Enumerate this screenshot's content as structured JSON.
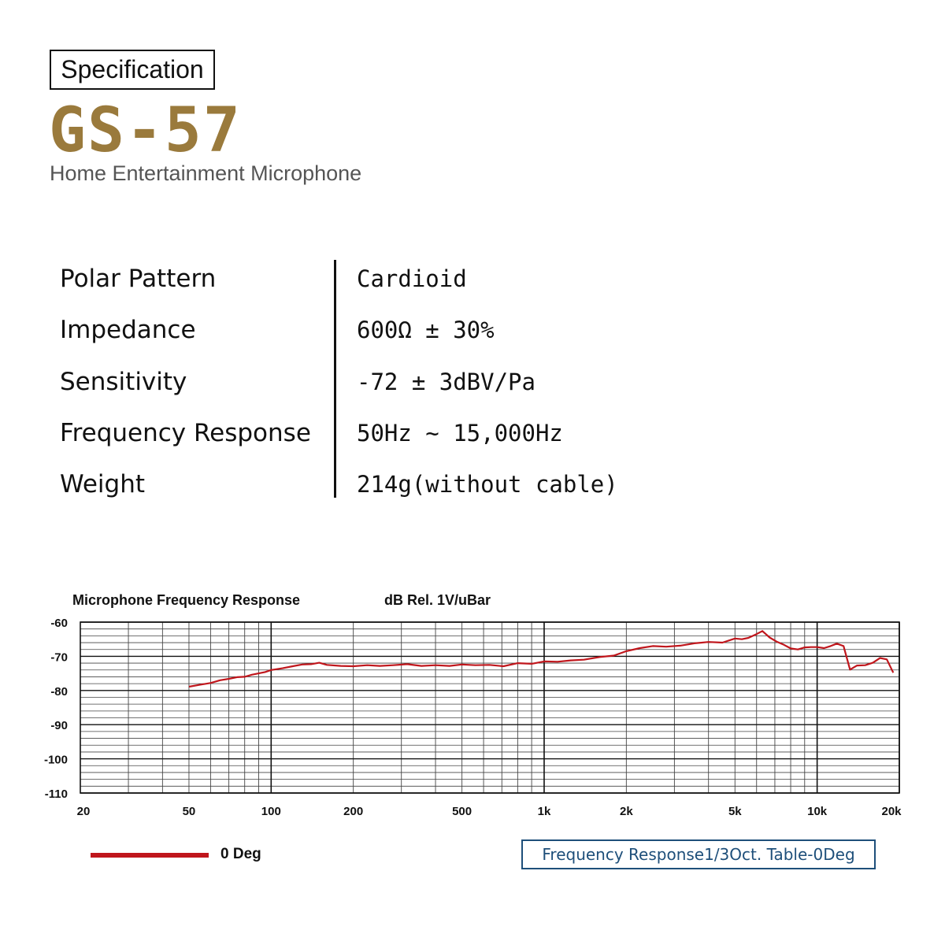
{
  "header": {
    "badge": "Specification",
    "model": "GS-57",
    "subtitle": "Home Entertainment Microphone"
  },
  "specs": [
    {
      "label": "Polar Pattern",
      "value": "Cardioid"
    },
    {
      "label": "Impedance",
      "value": "600Ω ± 30%"
    },
    {
      "label": "Sensitivity",
      "value": "-72 ± 3dBV/Pa"
    },
    {
      "label": "Frequency Response",
      "value": "50Hz ~ 15,000Hz"
    },
    {
      "label": "Weight",
      "value": "214g(without cable)"
    }
  ],
  "colors": {
    "model": "#9a7a3c",
    "curve": "#c0161c",
    "badge_border": "#1e4f7a"
  },
  "chart_data": {
    "type": "line",
    "title": "Microphone Frequency Response",
    "ylabel": "dB Rel. 1V/uBar",
    "x_scale": "log",
    "xlim": [
      20,
      20000
    ],
    "ylim": [
      -110,
      -60
    ],
    "grid": true,
    "x_ticks": [
      20,
      50,
      100,
      200,
      500,
      1000,
      2000,
      5000,
      10000,
      20000
    ],
    "x_tick_labels": [
      "20",
      "50",
      "100",
      "200",
      "500",
      "1k",
      "2k",
      "5k",
      "10k",
      "20k"
    ],
    "y_ticks": [
      -60,
      -70,
      -80,
      -90,
      -100,
      -110
    ],
    "y_tick_labels": [
      "-60",
      "-70",
      "-80",
      "-90",
      "-100",
      "-110"
    ],
    "legend_placement": "bottom-left",
    "series": [
      {
        "name": "0 Deg",
        "x": [
          50,
          55,
          60,
          65,
          70,
          75,
          80,
          85,
          90,
          95,
          100,
          110,
          120,
          130,
          140,
          150,
          160,
          180,
          200,
          225,
          250,
          280,
          315,
          355,
          400,
          450,
          500,
          560,
          630,
          710,
          800,
          900,
          1000,
          1120,
          1250,
          1400,
          1600,
          1800,
          2000,
          2240,
          2500,
          2800,
          3150,
          3550,
          4000,
          4500,
          5000,
          5300,
          5600,
          6000,
          6300,
          6700,
          7100,
          7500,
          8000,
          8500,
          9000,
          9500,
          10000,
          10600,
          11200,
          11800,
          12500,
          13200,
          14000,
          15000,
          16000,
          17000,
          18000,
          19000
        ],
        "y": [
          -78.9,
          -78.3,
          -77.8,
          -77.0,
          -76.6,
          -76.1,
          -76.0,
          -75.4,
          -75.0,
          -74.6,
          -74.0,
          -73.5,
          -72.9,
          -72.4,
          -72.3,
          -71.9,
          -72.5,
          -72.8,
          -72.9,
          -72.6,
          -72.8,
          -72.6,
          -72.3,
          -72.8,
          -72.6,
          -72.8,
          -72.4,
          -72.6,
          -72.5,
          -72.9,
          -72.0,
          -72.2,
          -71.5,
          -71.6,
          -71.2,
          -71.0,
          -70.2,
          -69.8,
          -68.5,
          -67.6,
          -67.0,
          -67.2,
          -66.9,
          -66.2,
          -65.8,
          -66.0,
          -64.8,
          -65.0,
          -64.6,
          -63.5,
          -62.6,
          -64.5,
          -65.7,
          -66.5,
          -67.7,
          -68.0,
          -67.4,
          -67.3,
          -67.3,
          -67.6,
          -67.0,
          -66.3,
          -67.0,
          -73.9,
          -72.7,
          -72.6,
          -71.9,
          -70.5,
          -70.9,
          -74.8
        ]
      }
    ],
    "annotation": "Frequency Response1/3Oct. Table-0Deg"
  }
}
